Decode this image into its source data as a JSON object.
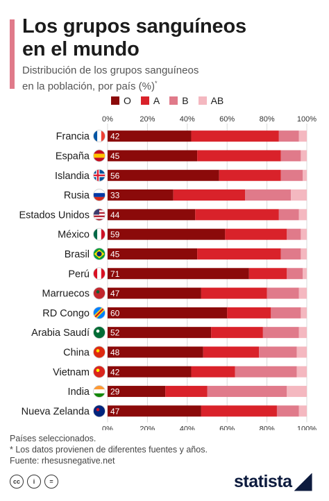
{
  "header": {
    "title_line1": "Los grupos sanguíneos",
    "title_line2": "en el mundo",
    "subtitle_line1": "Distribución de los grupos sanguíneos",
    "subtitle_line2": "en la población, por país (%)",
    "subtitle_mark": "*"
  },
  "chart_data": {
    "type": "bar",
    "orientation": "horizontal",
    "stacked": true,
    "categories": [
      "Francia",
      "España",
      "Islandia",
      "Rusia",
      "Estados Unidos",
      "México",
      "Brasil",
      "Perú",
      "Marruecos",
      "RD Congo",
      "Arabia Saudí",
      "China",
      "Vietnam",
      "India",
      "Nueva Zelanda"
    ],
    "series": [
      {
        "name": "O",
        "color": "#8b0a0a",
        "values": [
          42,
          45,
          56,
          33,
          44,
          59,
          45,
          71,
          47,
          60,
          52,
          48,
          42,
          29,
          47
        ]
      },
      {
        "name": "A",
        "color": "#d9222a",
        "values": [
          44,
          42,
          31,
          36,
          42,
          31,
          42,
          19,
          33,
          22,
          26,
          28,
          22,
          21,
          38
        ]
      },
      {
        "name": "B",
        "color": "#e07a8a",
        "values": [
          10,
          10,
          11,
          23,
          10,
          7,
          10,
          8,
          16,
          15,
          18,
          19,
          31,
          40,
          11
        ]
      },
      {
        "name": "AB",
        "color": "#f4b8c0",
        "values": [
          4,
          3,
          2,
          8,
          4,
          3,
          3,
          2,
          4,
          3,
          4,
          5,
          5,
          10,
          4
        ]
      }
    ],
    "data_labels_series": "O",
    "x_ticks": [
      "0%",
      "20%",
      "40%",
      "60%",
      "80%",
      "100%"
    ],
    "xlim": [
      0,
      100
    ],
    "grid": true,
    "legend_position": "top",
    "flag_icons": [
      "flag-france-icon",
      "flag-spain-icon",
      "flag-iceland-icon",
      "flag-russia-icon",
      "flag-usa-icon",
      "flag-mexico-icon",
      "flag-brazil-icon",
      "flag-peru-icon",
      "flag-morocco-icon",
      "flag-drcongo-icon",
      "flag-saudi-icon",
      "flag-china-icon",
      "flag-vietnam-icon",
      "flag-india-icon",
      "flag-newzealand-icon"
    ]
  },
  "notes": {
    "line1": "Países seleccionados.",
    "line2": "* Los datos provienen de diferentes fuentes y años.",
    "line3": "Fuente: rhesusnegative.net"
  },
  "license_icons": [
    "cc-icon",
    "by-icon",
    "nd-icon"
  ],
  "license_labels": [
    "cc",
    "i",
    "="
  ],
  "brand": {
    "name": "statista"
  }
}
